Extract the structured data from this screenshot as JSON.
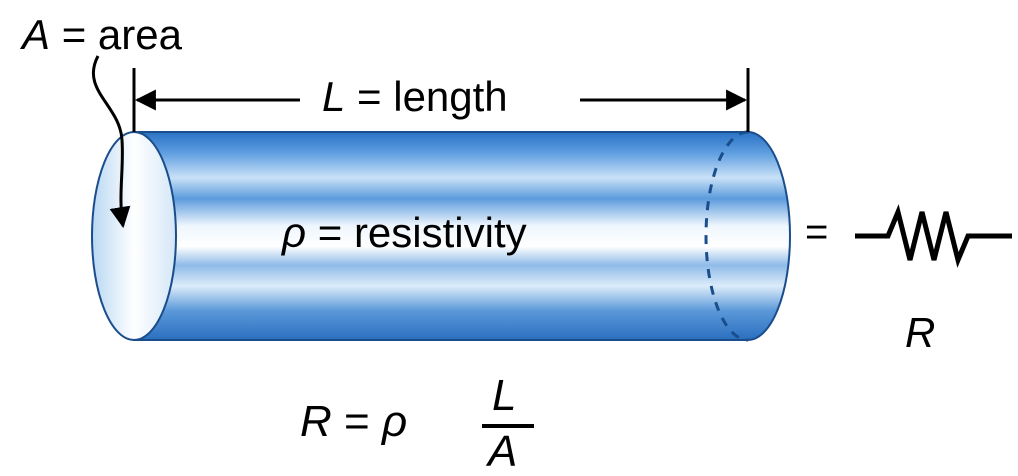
{
  "labels": {
    "area": {
      "symbol": "A",
      "equals": "=",
      "text": "area"
    },
    "length": {
      "symbol": "L",
      "equals": "=",
      "text": "length"
    },
    "resistivity": {
      "symbol": "ρ",
      "equals": "=",
      "text": "resistivity"
    },
    "equals_sign": "=",
    "resistor_symbol": "R"
  },
  "formula": {
    "lhs": "R",
    "equals": "=",
    "rho": "ρ",
    "numerator": "L",
    "denominator": "A"
  },
  "colors": {
    "cylinder_dark": "#2e7ccf",
    "cylinder_light": "#eef6fd",
    "cylinder_outline": "#1a4d8c",
    "end_face": "#dfeefb",
    "line": "#000000"
  }
}
